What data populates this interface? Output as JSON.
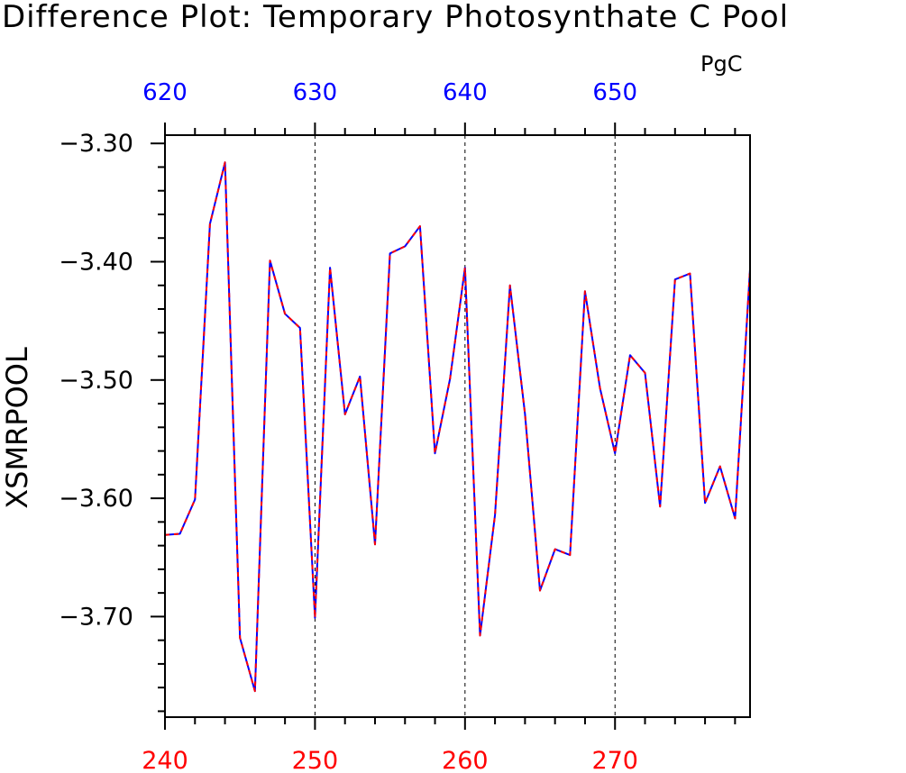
{
  "chart_data": {
    "type": "line",
    "title": "Difference Plot: Temporary Photosynthate C Pool",
    "units": "PgC",
    "ylabel": "XSMRPOOL",
    "xlabel": "",
    "xlim": [
      240,
      279
    ],
    "ylim": [
      -3.785,
      -3.293
    ],
    "grid": "dashed vertical at labeled bottom ticks",
    "bottom_axis": {
      "ticks": [
        240,
        250,
        260,
        270
      ],
      "labels": [
        "240",
        "250",
        "260",
        "270"
      ],
      "color": "#ff0000"
    },
    "top_axis": {
      "ticks": [
        620,
        630,
        640,
        650
      ],
      "labels": [
        "620",
        "630",
        "640",
        "650"
      ],
      "color": "#0000ff",
      "offset": 380
    },
    "yticks": [
      -3.3,
      -3.4,
      -3.5,
      -3.6,
      -3.7
    ],
    "ytick_labels": [
      "−3.30",
      "−3.40",
      "−3.50",
      "−3.60",
      "−3.70"
    ],
    "series": [
      {
        "color": "#0000ff",
        "style": "solid",
        "x": [
          240,
          241,
          242,
          243,
          244,
          245,
          246,
          247,
          248,
          249,
          250,
          251,
          252,
          253,
          254,
          255,
          256,
          257,
          258,
          259,
          260,
          261,
          262,
          263,
          264,
          265,
          266,
          267,
          268,
          269,
          270,
          271,
          272,
          273,
          274,
          275,
          276,
          277,
          278,
          279
        ],
        "values": [
          -3.631,
          -3.63,
          -3.601,
          -3.368,
          -3.316,
          -3.718,
          -3.763,
          -3.399,
          -3.444,
          -3.456,
          -3.701,
          -3.405,
          -3.529,
          -3.497,
          -3.639,
          -3.393,
          -3.387,
          -3.37,
          -3.562,
          -3.499,
          -3.405,
          -3.716,
          -3.614,
          -3.42,
          -3.529,
          -3.678,
          -3.643,
          -3.648,
          -3.425,
          -3.507,
          -3.562,
          -3.479,
          -3.494,
          -3.607,
          -3.415,
          -3.41,
          -3.604,
          -3.573,
          -3.617,
          -3.406
        ]
      },
      {
        "color": "#ff0000",
        "style": "dashed",
        "x": [
          240,
          241,
          242,
          243,
          244,
          245,
          246,
          247,
          248,
          249,
          250,
          251,
          252,
          253,
          254,
          255,
          256,
          257,
          258,
          259,
          260,
          261,
          262,
          263,
          264,
          265,
          266,
          267,
          268,
          269,
          270,
          271,
          272,
          273,
          274,
          275,
          276,
          277,
          278,
          279
        ],
        "values": [
          -3.631,
          -3.63,
          -3.601,
          -3.368,
          -3.316,
          -3.718,
          -3.763,
          -3.399,
          -3.444,
          -3.456,
          -3.701,
          -3.405,
          -3.529,
          -3.497,
          -3.639,
          -3.393,
          -3.387,
          -3.37,
          -3.562,
          -3.499,
          -3.405,
          -3.716,
          -3.614,
          -3.42,
          -3.529,
          -3.678,
          -3.643,
          -3.648,
          -3.425,
          -3.507,
          -3.562,
          -3.479,
          -3.494,
          -3.607,
          -3.415,
          -3.41,
          -3.604,
          -3.573,
          -3.617,
          -3.406
        ]
      }
    ]
  }
}
